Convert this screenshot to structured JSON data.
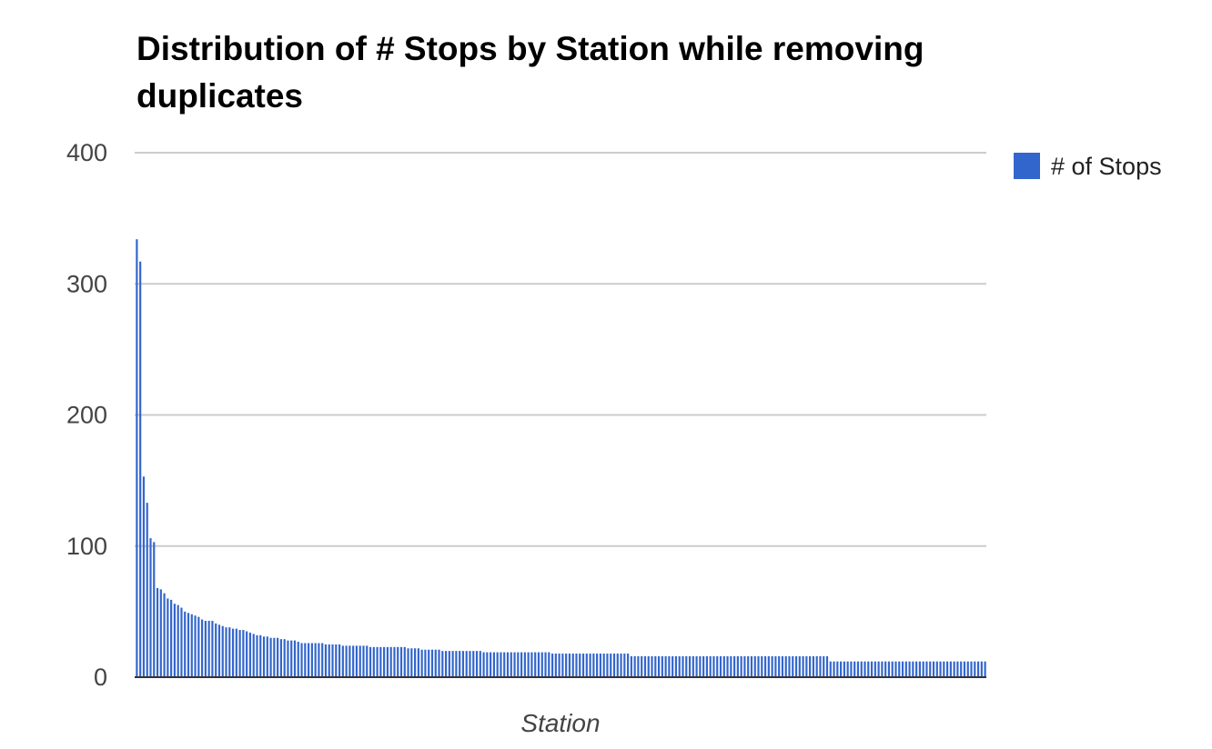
{
  "chart_data": {
    "type": "bar",
    "title": "Distribution of # Stops by Station while removing duplicates",
    "xlabel": "Station",
    "ylabel": "",
    "ylim": [
      0,
      400
    ],
    "yticks": [
      "0",
      "100",
      "200",
      "300",
      "400"
    ],
    "grid": true,
    "legend_position": "right",
    "series": [
      {
        "name": "# of Stops",
        "color": "#3366cc",
        "values": [
          334,
          317,
          153,
          133,
          106,
          103,
          68,
          67,
          64,
          60,
          59,
          56,
          55,
          53,
          50,
          49,
          48,
          47,
          46,
          44,
          43,
          43,
          43,
          41,
          40,
          39,
          38,
          38,
          37,
          37,
          36,
          36,
          35,
          34,
          33,
          32,
          32,
          31,
          31,
          30,
          30,
          30,
          29,
          29,
          28,
          28,
          28,
          27,
          26,
          26,
          26,
          26,
          26,
          26,
          26,
          25,
          25,
          25,
          25,
          25,
          24,
          24,
          24,
          24,
          24,
          24,
          24,
          24,
          23,
          23,
          23,
          23,
          23,
          23,
          23,
          23,
          23,
          23,
          23,
          22,
          22,
          22,
          22,
          21,
          21,
          21,
          21,
          21,
          21,
          20,
          20,
          20,
          20,
          20,
          20,
          20,
          20,
          20,
          20,
          20,
          20,
          19,
          19,
          19,
          19,
          19,
          19,
          19,
          19,
          19,
          19,
          19,
          19,
          19,
          19,
          19,
          19,
          19,
          19,
          19,
          19,
          18,
          18,
          18,
          18,
          18,
          18,
          18,
          18,
          18,
          18,
          18,
          18,
          18,
          18,
          18,
          18,
          18,
          18,
          18,
          18,
          18,
          18,
          18,
          16,
          16,
          16,
          16,
          16,
          16,
          16,
          16,
          16,
          16,
          16,
          16,
          16,
          16,
          16,
          16,
          16,
          16,
          16,
          16,
          16,
          16,
          16,
          16,
          16,
          16,
          16,
          16,
          16,
          16,
          16,
          16,
          16,
          16,
          16,
          16,
          16,
          16,
          16,
          16,
          16,
          16,
          16,
          16,
          16,
          16,
          16,
          16,
          16,
          16,
          16,
          16,
          16,
          16,
          16,
          16,
          16,
          16,
          12,
          12,
          12,
          12,
          12,
          12,
          12,
          12,
          12,
          12,
          12,
          12,
          12,
          12,
          12,
          12,
          12,
          12,
          12,
          12,
          12,
          12,
          12,
          12,
          12,
          12,
          12,
          12,
          12,
          12,
          12,
          12,
          12,
          12,
          12,
          12,
          12,
          12,
          12,
          12,
          12,
          12,
          12,
          12,
          12,
          12
        ]
      }
    ]
  }
}
